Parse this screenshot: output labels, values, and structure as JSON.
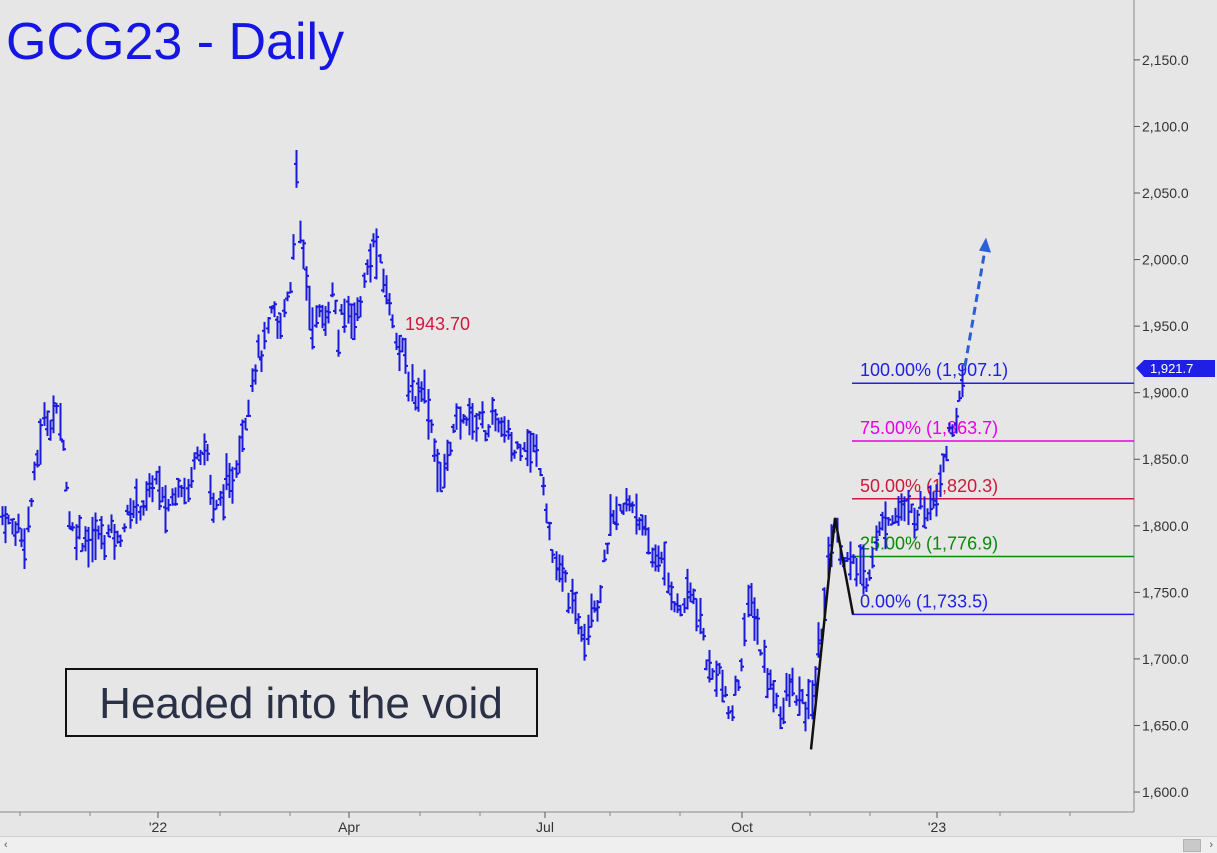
{
  "chart_data": {
    "type": "ohlc",
    "title": "GCG23 - Daily",
    "annotation": "Headed into the void",
    "price_label": "1943.70",
    "last_price": "1,921.7",
    "y_ticks": [
      {
        "value": 1600,
        "label": "1,600.0"
      },
      {
        "value": 1650,
        "label": "1,650.0"
      },
      {
        "value": 1700,
        "label": "1,700.0"
      },
      {
        "value": 1750,
        "label": "1,750.0"
      },
      {
        "value": 1800,
        "label": "1,800.0"
      },
      {
        "value": 1850,
        "label": "1,850.0"
      },
      {
        "value": 1900,
        "label": "1,900.0"
      },
      {
        "value": 1950,
        "label": "1,950.0"
      },
      {
        "value": 2000,
        "label": "2,000.0"
      },
      {
        "value": 2050,
        "label": "2,050.0"
      },
      {
        "value": 2100,
        "label": "2,100.0"
      },
      {
        "value": 2150,
        "label": "2,150.0"
      }
    ],
    "x_ticks": [
      "'22",
      "Apr",
      "Jul",
      "Oct",
      "'23"
    ],
    "fib_levels": [
      {
        "label": "100.00% (1,907.1)",
        "value": 1907.1,
        "color": "#1f1fe6"
      },
      {
        "label": "75.00% (1,863.7)",
        "value": 1863.7,
        "color": "#e600e6"
      },
      {
        "label": "50.00% (1,820.3)",
        "value": 1820.3,
        "color": "#cc1a3a"
      },
      {
        "label": "25.00% (1,776.9)",
        "value": 1776.9,
        "color": "#0a8a0a"
      },
      {
        "label": "0.00% (1,733.5)",
        "value": 1733.5,
        "color": "#1f1fe6"
      }
    ],
    "abc_pattern": [
      1632,
      1806,
      1733.5
    ],
    "target_arrow": [
      1920,
      2015
    ],
    "ylim": [
      1585,
      2195
    ],
    "series_points": [
      [
        0,
        1810
      ],
      [
        6,
        1805
      ],
      [
        10,
        1800
      ],
      [
        14,
        1795
      ],
      [
        18,
        1802
      ],
      [
        22,
        1790
      ],
      [
        26,
        1795
      ],
      [
        30,
        1815
      ],
      [
        34,
        1835
      ],
      [
        38,
        1855
      ],
      [
        42,
        1875
      ],
      [
        46,
        1882
      ],
      [
        50,
        1878
      ],
      [
        54,
        1885
      ],
      [
        58,
        1882
      ],
      [
        62,
        1876
      ],
      [
        66,
        1830
      ],
      [
        70,
        1800
      ],
      [
        74,
        1795
      ],
      [
        78,
        1798
      ],
      [
        82,
        1790
      ],
      [
        86,
        1793
      ],
      [
        90,
        1785
      ],
      [
        94,
        1790
      ],
      [
        98,
        1795
      ],
      [
        102,
        1790
      ],
      [
        106,
        1793
      ],
      [
        110,
        1797
      ],
      [
        114,
        1795
      ],
      [
        118,
        1785
      ],
      [
        122,
        1800
      ],
      [
        126,
        1805
      ],
      [
        130,
        1810
      ],
      [
        134,
        1815
      ],
      [
        138,
        1818
      ],
      [
        142,
        1815
      ],
      [
        146,
        1820
      ],
      [
        150,
        1825
      ],
      [
        154,
        1838
      ],
      [
        158,
        1830
      ],
      [
        162,
        1818
      ],
      [
        166,
        1812
      ],
      [
        170,
        1818
      ],
      [
        174,
        1825
      ],
      [
        178,
        1835
      ],
      [
        182,
        1830
      ],
      [
        186,
        1825
      ],
      [
        190,
        1830
      ],
      [
        194,
        1855
      ],
      [
        198,
        1862
      ],
      [
        202,
        1855
      ],
      [
        206,
        1860
      ],
      [
        210,
        1830
      ],
      [
        214,
        1808
      ],
      [
        218,
        1815
      ],
      [
        222,
        1825
      ],
      [
        226,
        1830
      ],
      [
        230,
        1825
      ],
      [
        234,
        1842
      ],
      [
        238,
        1855
      ],
      [
        242,
        1870
      ],
      [
        246,
        1885
      ],
      [
        250,
        1905
      ],
      [
        254,
        1920
      ],
      [
        258,
        1928
      ],
      [
        262,
        1930
      ],
      [
        266,
        1940
      ],
      [
        270,
        1955
      ],
      [
        274,
        1960
      ],
      [
        278,
        1945
      ],
      [
        282,
        1955
      ],
      [
        286,
        1975
      ],
      [
        290,
        1980
      ],
      [
        294,
        2025
      ],
      [
        296,
        2075
      ],
      [
        298,
        2020
      ],
      [
        302,
        2010
      ],
      [
        306,
        1985
      ],
      [
        310,
        1960
      ],
      [
        314,
        1950
      ],
      [
        318,
        1960
      ],
      [
        322,
        1955
      ],
      [
        326,
        1955
      ],
      [
        330,
        1975
      ],
      [
        334,
        1970
      ],
      [
        338,
        1940
      ],
      [
        342,
        1958
      ],
      [
        346,
        1960
      ],
      [
        350,
        1965
      ],
      [
        354,
        1955
      ],
      [
        358,
        1962
      ],
      [
        362,
        1975
      ],
      [
        366,
        1990
      ],
      [
        370,
        2000
      ],
      [
        374,
        2015
      ],
      [
        378,
        2000
      ],
      [
        382,
        1985
      ],
      [
        386,
        1980
      ],
      [
        390,
        1960
      ],
      [
        394,
        1955
      ],
      [
        398,
        1935
      ],
      [
        402,
        1930
      ],
      [
        406,
        1920
      ],
      [
        410,
        1905
      ],
      [
        414,
        1895
      ],
      [
        418,
        1900
      ],
      [
        422,
        1910
      ],
      [
        426,
        1895
      ],
      [
        430,
        1880
      ],
      [
        434,
        1860
      ],
      [
        438,
        1840
      ],
      [
        442,
        1830
      ],
      [
        446,
        1850
      ],
      [
        450,
        1865
      ],
      [
        454,
        1870
      ],
      [
        458,
        1880
      ],
      [
        462,
        1875
      ],
      [
        466,
        1885
      ],
      [
        470,
        1880
      ],
      [
        474,
        1875
      ],
      [
        478,
        1885
      ],
      [
        482,
        1880
      ],
      [
        486,
        1870
      ],
      [
        490,
        1880
      ],
      [
        494,
        1875
      ],
      [
        498,
        1880
      ],
      [
        502,
        1870
      ],
      [
        506,
        1870
      ],
      [
        510,
        1860
      ],
      [
        514,
        1855
      ],
      [
        518,
        1860
      ],
      [
        522,
        1865
      ],
      [
        526,
        1865
      ],
      [
        530,
        1855
      ],
      [
        534,
        1860
      ],
      [
        538,
        1850
      ],
      [
        542,
        1840
      ],
      [
        546,
        1815
      ],
      [
        550,
        1790
      ],
      [
        554,
        1770
      ],
      [
        558,
        1760
      ],
      [
        562,
        1765
      ],
      [
        566,
        1755
      ],
      [
        570,
        1745
      ],
      [
        574,
        1735
      ],
      [
        578,
        1730
      ],
      [
        582,
        1725
      ],
      [
        586,
        1720
      ],
      [
        590,
        1740
      ],
      [
        594,
        1745
      ],
      [
        598,
        1740
      ],
      [
        602,
        1760
      ],
      [
        606,
        1785
      ],
      [
        610,
        1800
      ],
      [
        614,
        1805
      ],
      [
        618,
        1810
      ],
      [
        622,
        1810
      ],
      [
        626,
        1815
      ],
      [
        630,
        1820
      ],
      [
        634,
        1815
      ],
      [
        638,
        1810
      ],
      [
        642,
        1795
      ],
      [
        646,
        1790
      ],
      [
        650,
        1780
      ],
      [
        654,
        1775
      ],
      [
        658,
        1780
      ],
      [
        662,
        1770
      ],
      [
        666,
        1760
      ],
      [
        670,
        1755
      ],
      [
        674,
        1745
      ],
      [
        678,
        1735
      ],
      [
        682,
        1740
      ],
      [
        686,
        1745
      ],
      [
        690,
        1750
      ],
      [
        694,
        1745
      ],
      [
        698,
        1730
      ],
      [
        702,
        1720
      ],
      [
        706,
        1700
      ],
      [
        710,
        1685
      ],
      [
        714,
        1690
      ],
      [
        718,
        1695
      ],
      [
        722,
        1680
      ],
      [
        726,
        1665
      ],
      [
        730,
        1655
      ],
      [
        734,
        1670
      ],
      [
        738,
        1685
      ],
      [
        742,
        1705
      ],
      [
        746,
        1730
      ],
      [
        750,
        1745
      ],
      [
        754,
        1735
      ],
      [
        758,
        1720
      ],
      [
        762,
        1700
      ],
      [
        766,
        1690
      ],
      [
        770,
        1680
      ],
      [
        774,
        1675
      ],
      [
        778,
        1665
      ],
      [
        782,
        1660
      ],
      [
        786,
        1670
      ],
      [
        790,
        1680
      ],
      [
        794,
        1675
      ],
      [
        798,
        1670
      ],
      [
        802,
        1665
      ],
      [
        806,
        1660
      ],
      [
        810,
        1665
      ],
      [
        814,
        1680
      ],
      [
        818,
        1705
      ],
      [
        822,
        1725
      ],
      [
        826,
        1760
      ],
      [
        830,
        1790
      ],
      [
        834,
        1800
      ],
      [
        838,
        1790
      ],
      [
        842,
        1780
      ],
      [
        846,
        1775
      ],
      [
        850,
        1770
      ],
      [
        854,
        1768
      ],
      [
        858,
        1770
      ],
      [
        862,
        1765
      ],
      [
        866,
        1760
      ],
      [
        870,
        1770
      ],
      [
        874,
        1785
      ],
      [
        878,
        1795
      ],
      [
        882,
        1800
      ],
      [
        886,
        1805
      ],
      [
        890,
        1810
      ],
      [
        894,
        1808
      ],
      [
        898,
        1812
      ],
      [
        902,
        1815
      ],
      [
        906,
        1805
      ],
      [
        910,
        1810
      ],
      [
        914,
        1808
      ],
      [
        918,
        1812
      ],
      [
        922,
        1815
      ],
      [
        926,
        1810
      ],
      [
        930,
        1820
      ],
      [
        934,
        1825
      ],
      [
        938,
        1830
      ],
      [
        942,
        1845
      ],
      [
        946,
        1860
      ],
      [
        950,
        1870
      ],
      [
        954,
        1880
      ],
      [
        958,
        1890
      ],
      [
        962,
        1900
      ],
      [
        964,
        1912
      ]
    ]
  },
  "scrollbar": {
    "left_arrow": "‹",
    "right_arrow": "›"
  }
}
